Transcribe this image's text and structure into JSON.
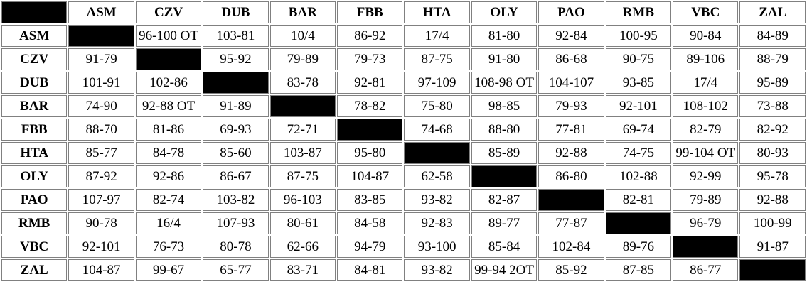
{
  "teams": [
    "ASM",
    "CZV",
    "DUB",
    "BAR",
    "FBB",
    "HTA",
    "OLY",
    "PAO",
    "RMB",
    "VBC",
    "ZAL"
  ],
  "rows": [
    {
      "team": "ASM",
      "results": [
        "",
        "96-100 OT",
        "103-81",
        "10/4",
        "86-92",
        "17/4",
        "81-80",
        "92-84",
        "100-95",
        "90-84",
        "84-89"
      ]
    },
    {
      "team": "CZV",
      "results": [
        "91-79",
        "",
        "95-92",
        "79-89",
        "79-73",
        "87-75",
        "91-80",
        "86-68",
        "90-75",
        "89-106",
        "88-79"
      ]
    },
    {
      "team": "DUB",
      "results": [
        "101-91",
        "102-86",
        "",
        "83-78",
        "92-81",
        "97-109",
        "108-98 OT",
        "104-107",
        "93-85",
        "17/4",
        "95-89"
      ]
    },
    {
      "team": "BAR",
      "results": [
        "74-90",
        "92-88 OT",
        "91-89",
        "",
        "78-82",
        "75-80",
        "98-85",
        "79-93",
        "92-101",
        "108-102",
        "73-88"
      ]
    },
    {
      "team": "FBB",
      "results": [
        "88-70",
        "81-86",
        "69-93",
        "72-71",
        "",
        "74-68",
        "88-80",
        "77-81",
        "69-74",
        "82-79",
        "82-92"
      ]
    },
    {
      "team": "HTA",
      "results": [
        "85-77",
        "84-78",
        "85-60",
        "103-87",
        "95-80",
        "",
        "85-89",
        "92-88",
        "74-75",
        "99-104 OT",
        "80-93"
      ]
    },
    {
      "team": "OLY",
      "results": [
        "87-92",
        "92-86",
        "86-67",
        "87-75",
        "104-87",
        "62-58",
        "",
        "86-80",
        "102-88",
        "92-99",
        "95-78"
      ]
    },
    {
      "team": "PAO",
      "results": [
        "107-97",
        "82-74",
        "103-82",
        "96-103",
        "83-85",
        "93-82",
        "82-87",
        "",
        "82-81",
        "79-89",
        "92-88"
      ]
    },
    {
      "team": "RMB",
      "results": [
        "90-78",
        "16/4",
        "107-93",
        "80-61",
        "84-58",
        "92-83",
        "89-77",
        "77-87",
        "",
        "96-79",
        "100-99"
      ]
    },
    {
      "team": "VBC",
      "results": [
        "92-101",
        "76-73",
        "80-78",
        "62-66",
        "94-79",
        "93-100",
        "85-84",
        "102-84",
        "89-76",
        "",
        "91-87"
      ]
    },
    {
      "team": "ZAL",
      "results": [
        "104-87",
        "99-67",
        "65-77",
        "83-71",
        "84-81",
        "93-82",
        "99-94 2OT",
        "85-92",
        "87-85",
        "86-77",
        ""
      ]
    }
  ],
  "colors": {
    "blocked_cell": "#000000",
    "border": "#808080",
    "text": "#000000",
    "background": "#ffffff"
  }
}
